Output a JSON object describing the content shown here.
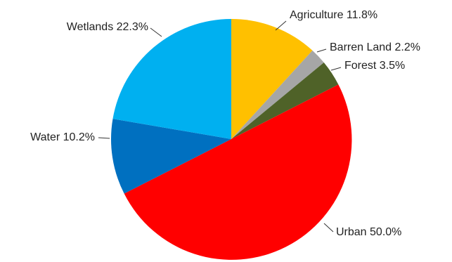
{
  "chart_data": {
    "type": "pie",
    "title": "",
    "start_angle_deg": 0,
    "direction": "clockwise",
    "slices": [
      {
        "label": "Agriculture",
        "value": 11.8,
        "display": "Agriculture 11.8%",
        "color": "#FFC000"
      },
      {
        "label": "Barren Land",
        "value": 2.2,
        "display": "Barren Land 2.2%",
        "color": "#A6A6A6"
      },
      {
        "label": "Forest",
        "value": 3.5,
        "display": "Forest 3.5%",
        "color": "#4F6228"
      },
      {
        "label": "Urban",
        "value": 50.0,
        "display": "Urban 50.0%",
        "color": "#FF0000"
      },
      {
        "label": "Water",
        "value": 10.2,
        "display": "Water 10.2%",
        "color": "#0070C0"
      },
      {
        "label": "Wetlands",
        "value": 22.3,
        "display": "Wetlands 22.3%",
        "color": "#00B0F0"
      }
    ]
  }
}
